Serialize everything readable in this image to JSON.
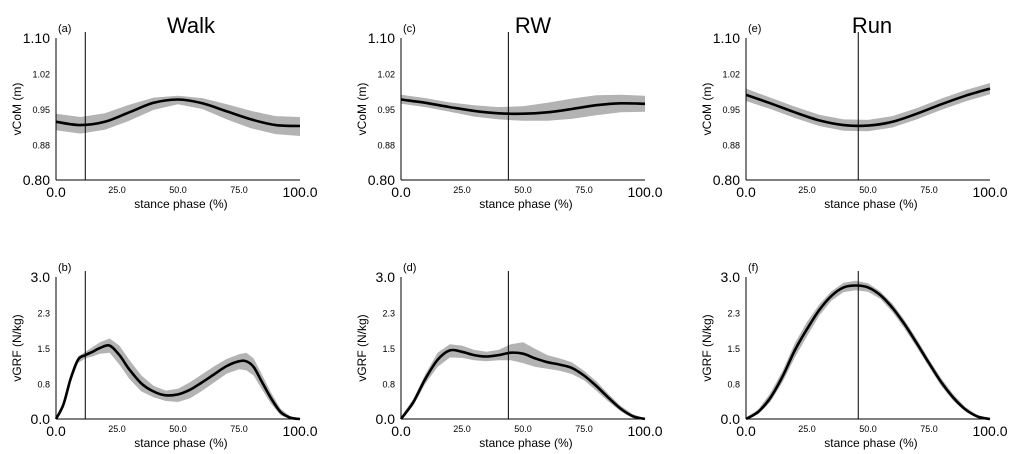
{
  "columns": [
    "Walk",
    "RW",
    "Run"
  ],
  "chart_data": [
    {
      "panel": "(a)",
      "type": "line",
      "title": "Walk",
      "xlabel": "stance phase (%)",
      "ylabel": "vCoM (m)",
      "xlim": [
        0,
        100
      ],
      "ylim": [
        0.8,
        1.1
      ],
      "xticks": [
        "0.0",
        "25.0",
        "50.0",
        "75.0",
        "100.0"
      ],
      "yticks": [
        "0.80",
        "0.88",
        "0.95",
        "1.02",
        "1.10"
      ],
      "vline": 12,
      "x": [
        0,
        10,
        20,
        30,
        40,
        50,
        60,
        70,
        80,
        90,
        100
      ],
      "mean": [
        0.923,
        0.916,
        0.923,
        0.943,
        0.963,
        0.97,
        0.962,
        0.945,
        0.928,
        0.916,
        0.914
      ],
      "upper": [
        0.94,
        0.933,
        0.941,
        0.959,
        0.974,
        0.978,
        0.973,
        0.96,
        0.946,
        0.935,
        0.933
      ],
      "lower": [
        0.905,
        0.898,
        0.906,
        0.925,
        0.948,
        0.96,
        0.95,
        0.928,
        0.909,
        0.897,
        0.893
      ]
    },
    {
      "panel": "(c)",
      "type": "line",
      "title": "RW",
      "xlabel": "stance phase (%)",
      "ylabel": "vCoM (m)",
      "xlim": [
        0,
        100
      ],
      "ylim": [
        0.8,
        1.1
      ],
      "xticks": [
        "0.0",
        "25.0",
        "50.0",
        "75.0",
        "100.0"
      ],
      "yticks": [
        "0.80",
        "0.88",
        "0.95",
        "1.02",
        "1.10"
      ],
      "vline": 44,
      "x": [
        0,
        10,
        20,
        30,
        40,
        50,
        60,
        70,
        80,
        90,
        100
      ],
      "mean": [
        0.97,
        0.963,
        0.954,
        0.946,
        0.941,
        0.94,
        0.943,
        0.95,
        0.958,
        0.962,
        0.961
      ],
      "upper": [
        0.98,
        0.973,
        0.964,
        0.958,
        0.954,
        0.956,
        0.963,
        0.972,
        0.979,
        0.98,
        0.978
      ],
      "lower": [
        0.961,
        0.954,
        0.944,
        0.934,
        0.928,
        0.925,
        0.925,
        0.929,
        0.937,
        0.943,
        0.944
      ]
    },
    {
      "panel": "(e)",
      "type": "line",
      "title": "Run",
      "xlabel": "stance phase (%)",
      "ylabel": "vCoM (m)",
      "xlim": [
        0,
        100
      ],
      "ylim": [
        0.8,
        1.1
      ],
      "xticks": [
        "0.0",
        "25.0",
        "50.0",
        "75.0",
        "100.0"
      ],
      "yticks": [
        "0.80",
        "0.88",
        "0.95",
        "1.02",
        "1.10"
      ],
      "vline": 46,
      "x": [
        0,
        10,
        20,
        30,
        40,
        50,
        60,
        70,
        80,
        90,
        100
      ],
      "mean": [
        0.98,
        0.962,
        0.943,
        0.926,
        0.916,
        0.915,
        0.923,
        0.94,
        0.96,
        0.978,
        0.993
      ],
      "upper": [
        0.993,
        0.974,
        0.955,
        0.938,
        0.928,
        0.927,
        0.935,
        0.952,
        0.972,
        0.99,
        1.005
      ],
      "lower": [
        0.967,
        0.95,
        0.931,
        0.914,
        0.904,
        0.903,
        0.911,
        0.928,
        0.948,
        0.966,
        0.981
      ]
    },
    {
      "panel": "(b)",
      "type": "line",
      "xlabel": "stance phase (%)",
      "ylabel": "vGRF (N/kg)",
      "xlim": [
        0,
        100
      ],
      "ylim": [
        0.0,
        3.0
      ],
      "xticks": [
        "0.0",
        "25.0",
        "50.0",
        "75.0",
        "100.0"
      ],
      "yticks": [
        "0.0",
        "0.8",
        "1.5",
        "2.3",
        "3.0"
      ],
      "vline": 12,
      "x": [
        0,
        3,
        6,
        9,
        12,
        15,
        18,
        22,
        26,
        30,
        35,
        40,
        45,
        50,
        55,
        60,
        65,
        70,
        75,
        78,
        81,
        84,
        88,
        92,
        96,
        100
      ],
      "mean": [
        0.0,
        0.3,
        0.85,
        1.25,
        1.35,
        1.42,
        1.5,
        1.55,
        1.35,
        1.05,
        0.75,
        0.58,
        0.5,
        0.52,
        0.62,
        0.78,
        0.95,
        1.12,
        1.22,
        1.22,
        1.1,
        0.82,
        0.45,
        0.15,
        0.03,
        0.0
      ],
      "upper": [
        0.05,
        0.36,
        0.93,
        1.32,
        1.42,
        1.52,
        1.62,
        1.7,
        1.55,
        1.25,
        0.92,
        0.7,
        0.6,
        0.64,
        0.78,
        0.95,
        1.12,
        1.27,
        1.37,
        1.4,
        1.28,
        0.98,
        0.57,
        0.22,
        0.06,
        0.02
      ],
      "lower": [
        0.0,
        0.24,
        0.77,
        1.18,
        1.28,
        1.32,
        1.38,
        1.4,
        1.15,
        0.85,
        0.58,
        0.46,
        0.38,
        0.36,
        0.44,
        0.6,
        0.78,
        0.96,
        1.05,
        1.03,
        0.92,
        0.66,
        0.33,
        0.08,
        0.0,
        0.0
      ]
    },
    {
      "panel": "(d)",
      "type": "line",
      "xlabel": "stance phase (%)",
      "ylabel": "vGRF (N/kg)",
      "xlim": [
        0,
        100
      ],
      "ylim": [
        0.0,
        3.0
      ],
      "xticks": [
        "0.0",
        "25.0",
        "50.0",
        "75.0",
        "100.0"
      ],
      "yticks": [
        "0.0",
        "0.8",
        "1.5",
        "2.3",
        "3.0"
      ],
      "vline": 44,
      "x": [
        0,
        5,
        10,
        15,
        20,
        25,
        30,
        35,
        40,
        45,
        50,
        55,
        60,
        65,
        70,
        75,
        80,
        85,
        90,
        95,
        100
      ],
      "mean": [
        0.0,
        0.35,
        0.85,
        1.25,
        1.45,
        1.42,
        1.35,
        1.32,
        1.35,
        1.4,
        1.38,
        1.28,
        1.2,
        1.15,
        1.08,
        0.92,
        0.7,
        0.45,
        0.22,
        0.06,
        0.0
      ],
      "upper": [
        0.05,
        0.42,
        0.95,
        1.4,
        1.58,
        1.55,
        1.46,
        1.42,
        1.46,
        1.58,
        1.62,
        1.48,
        1.35,
        1.28,
        1.2,
        1.02,
        0.8,
        0.53,
        0.28,
        0.1,
        0.02
      ],
      "lower": [
        0.0,
        0.28,
        0.75,
        1.1,
        1.3,
        1.29,
        1.24,
        1.22,
        1.24,
        1.24,
        1.18,
        1.1,
        1.06,
        1.02,
        0.95,
        0.82,
        0.6,
        0.37,
        0.16,
        0.02,
        0.0
      ]
    },
    {
      "panel": "(f)",
      "type": "line",
      "xlabel": "stance phase (%)",
      "ylabel": "vGRF (N/kg)",
      "xlim": [
        0,
        100
      ],
      "ylim": [
        0.0,
        3.0
      ],
      "xticks": [
        "0.0",
        "25.0",
        "50.0",
        "75.0",
        "100.0"
      ],
      "yticks": [
        "0.0",
        "0.8",
        "1.5",
        "2.3",
        "3.0"
      ],
      "vline": 46,
      "x": [
        0,
        5,
        10,
        15,
        20,
        25,
        30,
        35,
        40,
        45,
        50,
        55,
        60,
        65,
        70,
        75,
        80,
        85,
        90,
        95,
        100
      ],
      "mean": [
        0.0,
        0.15,
        0.45,
        0.9,
        1.45,
        1.9,
        2.3,
        2.6,
        2.78,
        2.82,
        2.78,
        2.62,
        2.35,
        2.0,
        1.6,
        1.18,
        0.78,
        0.45,
        0.2,
        0.05,
        0.0
      ],
      "upper": [
        0.03,
        0.2,
        0.55,
        1.02,
        1.6,
        2.05,
        2.42,
        2.7,
        2.88,
        2.92,
        2.87,
        2.7,
        2.44,
        2.09,
        1.69,
        1.26,
        0.86,
        0.52,
        0.25,
        0.08,
        0.01
      ],
      "lower": [
        0.0,
        0.1,
        0.36,
        0.78,
        1.3,
        1.75,
        2.18,
        2.5,
        2.68,
        2.72,
        2.69,
        2.54,
        2.26,
        1.91,
        1.51,
        1.1,
        0.7,
        0.38,
        0.15,
        0.02,
        0.0
      ]
    }
  ]
}
